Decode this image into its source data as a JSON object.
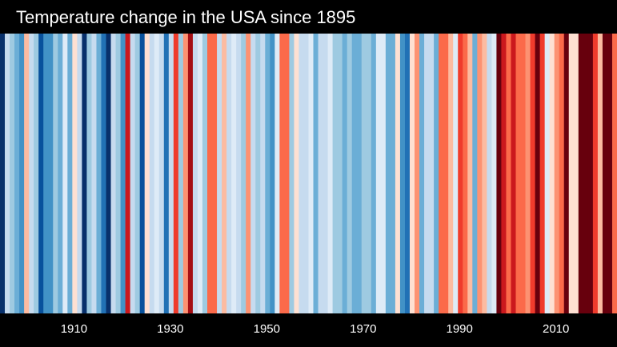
{
  "chart_data": {
    "type": "heatmap",
    "title": "Temperature change in the USA since 1895",
    "x_range": [
      1895,
      2022
    ],
    "xticks": [
      1910,
      1930,
      1950,
      1970,
      1990,
      2010
    ],
    "colors": [
      "#08306b",
      "#c6dbef",
      "#9ecae1",
      "#6baed6",
      "#4292c6",
      "#fcbba1",
      "#c6dbef",
      "#9ecae1",
      "#08519c",
      "#4292c6",
      "#4292c6",
      "#9ecae1",
      "#6baed6",
      "#deebf7",
      "#6baed6",
      "#fee0d2",
      "#c6dbef",
      "#08306b",
      "#9ecae1",
      "#c6dbef",
      "#6baed6",
      "#2171b5",
      "#08306b",
      "#c6dbef",
      "#9ecae1",
      "#4292c6",
      "#cb181d",
      "#c6dbef",
      "#9ecae1",
      "#08519c",
      "#fee0d2",
      "#c6dbef",
      "#deebf7",
      "#c6dbef",
      "#2171b5",
      "#c6dbef",
      "#ef3b2c",
      "#9ecae1",
      "#fc9272",
      "#a50f15",
      "#c6dbef",
      "#deebf7",
      "#9ecae1",
      "#fb6a4a",
      "#fb6a4a",
      "#c6dbef",
      "#fcbba1",
      "#c6dbef",
      "#deebf7",
      "#c6dbef",
      "#9ecae1",
      "#fc9272",
      "#c6dbef",
      "#9ecae1",
      "#c6dbef",
      "#6baed6",
      "#4292c6",
      "#deebf7",
      "#fb6a4a",
      "#fb6a4a",
      "#9ecae1",
      "#fee0d2",
      "#c6dbef",
      "#c6dbef",
      "#deebf7",
      "#6baed6",
      "#c6dbef",
      "#c6dbef",
      "#deebf7",
      "#9ecae1",
      "#9ecae1",
      "#6baed6",
      "#9ecae1",
      "#6baed6",
      "#6baed6",
      "#9ecae1",
      "#9ecae1",
      "#6baed6",
      "#deebf7",
      "#deebf7",
      "#6baed6",
      "#6baed6",
      "#fee0d2",
      "#4292c6",
      "#2171b5",
      "#fee0d2",
      "#fc9272",
      "#6baed6",
      "#c6dbef",
      "#c6dbef",
      "#6baed6",
      "#fb6a4a",
      "#fb6a4a",
      "#fcbba1",
      "#deebf7",
      "#ef3b2c",
      "#fb6a4a",
      "#fcbba1",
      "#6baed6",
      "#fc9272",
      "#fcbba1",
      "#c6dbef",
      "#deebf7",
      "#67000d",
      "#cb181d",
      "#fb6a4a",
      "#cb181d",
      "#fb6a4a",
      "#fb6a4a",
      "#fc9272",
      "#ef3b2c",
      "#67000d",
      "#ef3b2c",
      "#deebf7",
      "#fee0d2",
      "#fc9272",
      "#fb6a4a",
      "#67000d",
      "#fee0d2",
      "#fee0d2",
      "#67000d",
      "#67000d",
      "#67000d",
      "#ef3b2c",
      "#fcbba1",
      "#67000d",
      "#67000d",
      "#fb6a4a"
    ],
    "background": "#000000"
  }
}
